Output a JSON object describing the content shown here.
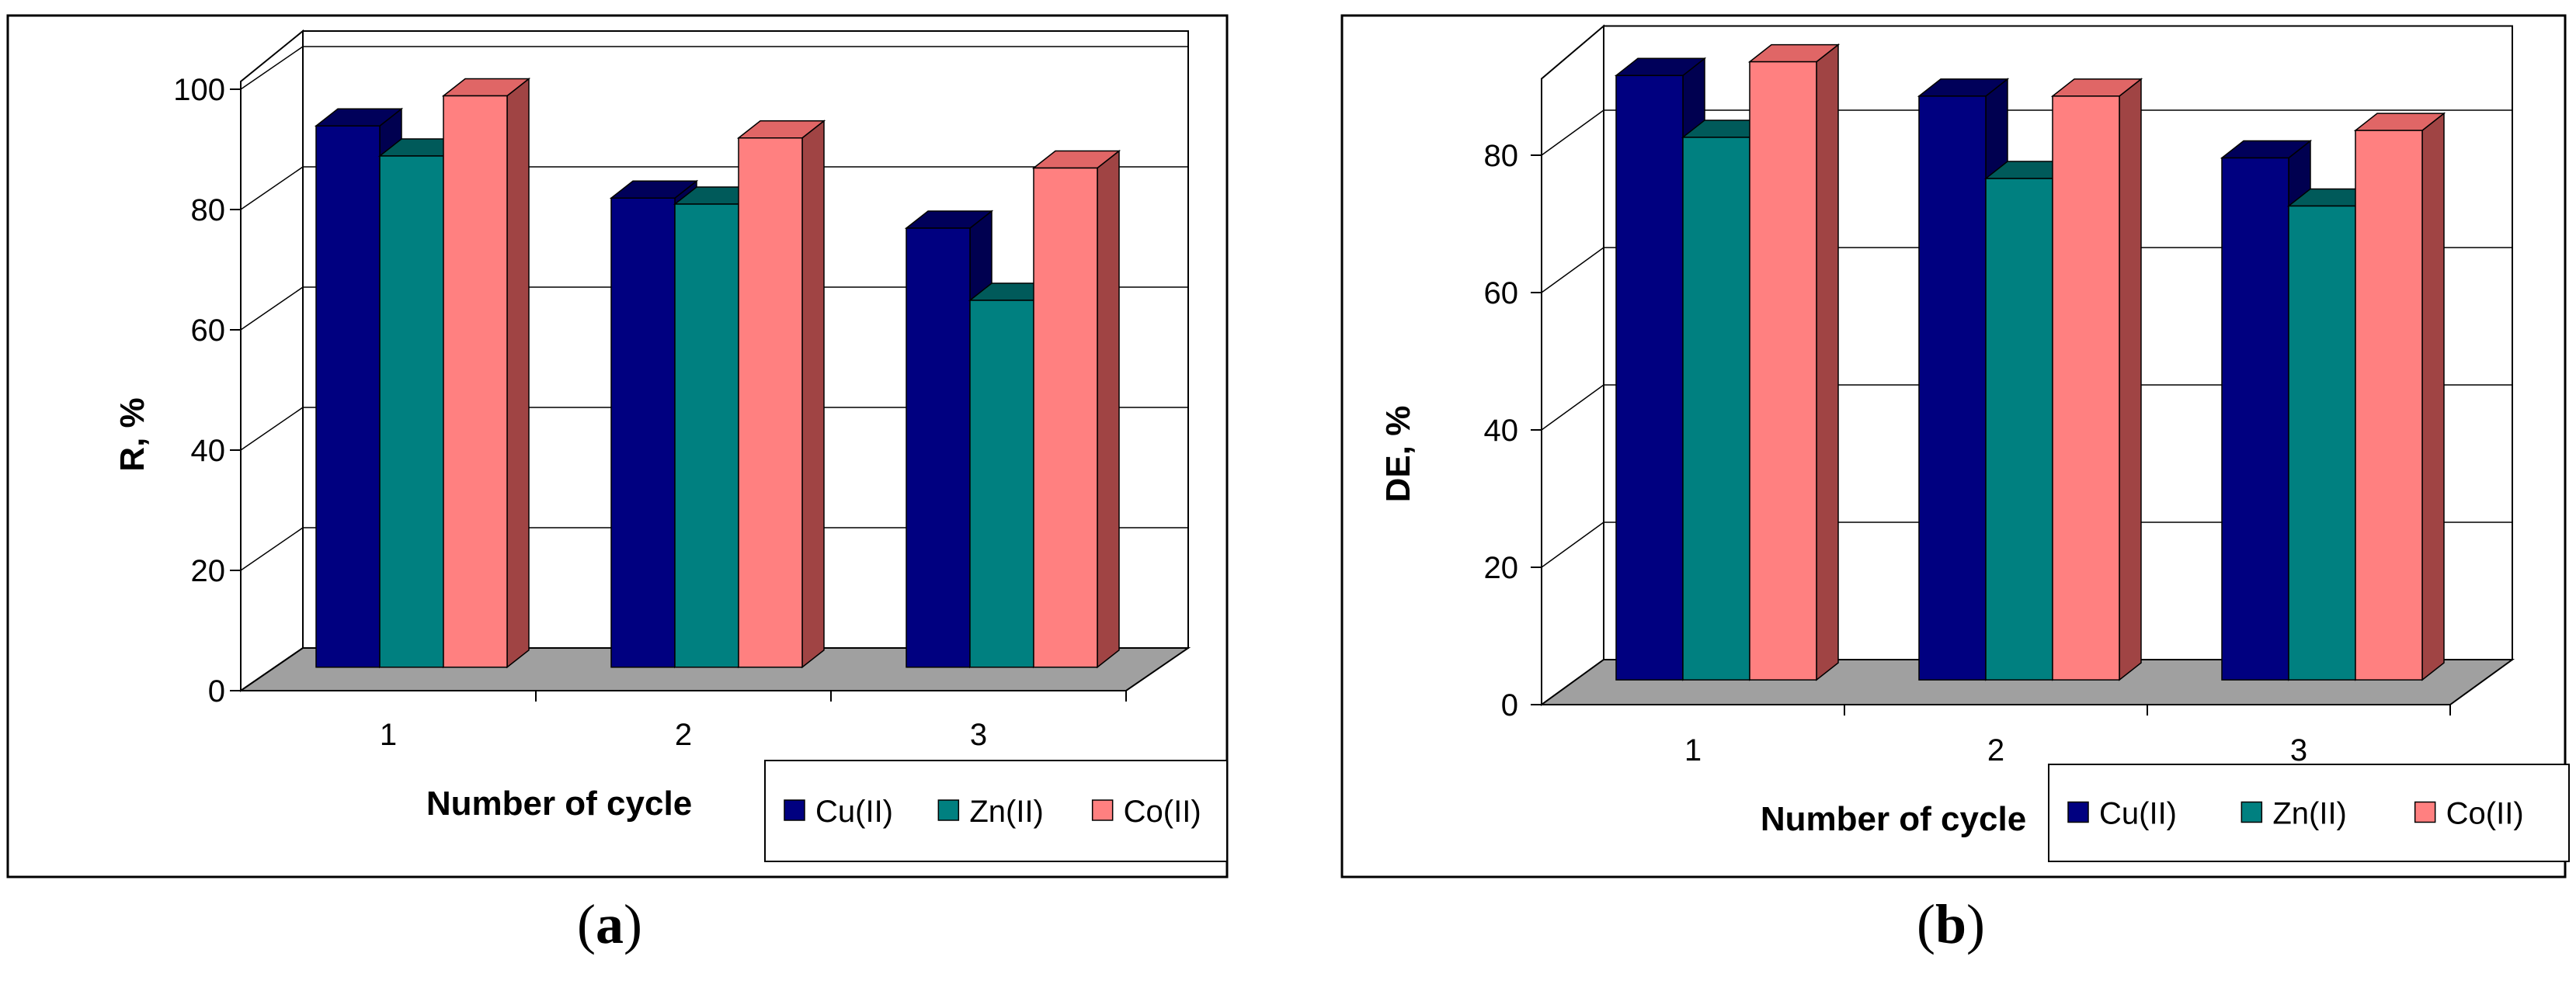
{
  "colors": {
    "series_front": [
      "#000080",
      "#008080",
      "#ff8080"
    ],
    "series_top": [
      "#00005a",
      "#005a5a",
      "#e06666"
    ],
    "series_side": [
      "#000050",
      "#004a4a",
      "#a04444"
    ],
    "floor": "#a0a0a0",
    "grid": "#000000"
  },
  "chart_data": [
    {
      "type": "bar",
      "panel_label": "a",
      "categories": [
        "1",
        "2",
        "3"
      ],
      "series": [
        {
          "name": "Cu(II)",
          "values": [
            90,
            78,
            73
          ]
        },
        {
          "name": "Zn(II)",
          "values": [
            85,
            77,
            61
          ]
        },
        {
          "name": "Co(II)",
          "values": [
            95,
            88,
            83
          ]
        }
      ],
      "xlabel": "Number of cycle",
      "ylabel": "R, %",
      "ylim": [
        0,
        100
      ],
      "yticks": [
        "0",
        "20",
        "40",
        "60",
        "80",
        "100"
      ],
      "legend": "bottom-right",
      "grid": true
    },
    {
      "type": "bar",
      "panel_label": "b",
      "categories": [
        "1",
        "2",
        "3"
      ],
      "series": [
        {
          "name": "Cu(II)",
          "values": [
            88,
            85,
            76
          ]
        },
        {
          "name": "Zn(II)",
          "values": [
            79,
            73,
            69
          ]
        },
        {
          "name": "Co(II)",
          "values": [
            90,
            85,
            80
          ]
        }
      ],
      "xlabel": "Number of cycle",
      "ylabel": "DE, %",
      "ylim": [
        0,
        90
      ],
      "yticks": [
        "0",
        "20",
        "40",
        "60",
        "80"
      ],
      "legend": "bottom-right",
      "grid": true
    }
  ]
}
